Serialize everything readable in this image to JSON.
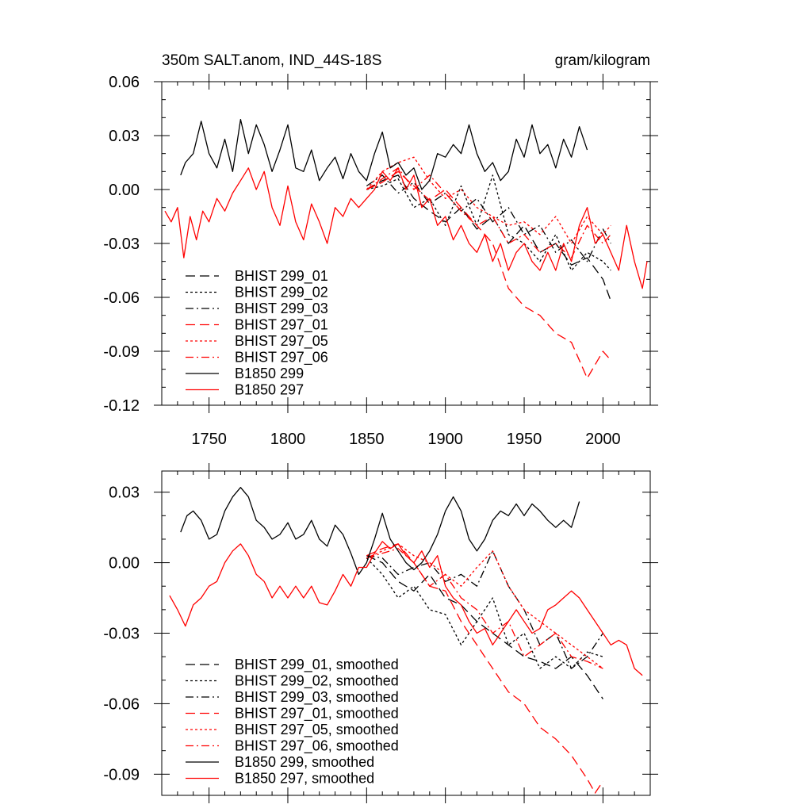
{
  "chart_data": [
    {
      "type": "line",
      "title_left": "350m SALT.anom, IND_44S-18S",
      "title_right": "gram/kilogram",
      "xlabel": "",
      "ylabel": "",
      "xlim": [
        1720,
        2030
      ],
      "ylim": [
        -0.12,
        0.06
      ],
      "x_tick_labels": [
        "1750",
        "1800",
        "1850",
        "1900",
        "1950",
        "2000"
      ],
      "y_tick_labels": [
        "0.06",
        "0.03",
        "0.00",
        "-0.03",
        "-0.06",
        "-0.09",
        "-0.12"
      ],
      "legend_position": "bottom-left",
      "series": [
        {
          "name": "BHIST 299_01",
          "color": "#000000",
          "dash": "dashed",
          "x": [
            1850,
            1860,
            1870,
            1880,
            1890,
            1900,
            1910,
            1920,
            1930,
            1940,
            1950,
            1960,
            1970,
            1980,
            1990,
            2000,
            2005
          ],
          "y": [
            0.0,
            0.005,
            0.008,
            -0.005,
            -0.012,
            -0.018,
            -0.01,
            -0.022,
            -0.015,
            -0.03,
            -0.02,
            -0.035,
            -0.03,
            -0.042,
            -0.038,
            -0.05,
            -0.062
          ]
        },
        {
          "name": "BHIST 299_02",
          "color": "#000000",
          "dash": "dotted",
          "x": [
            1850,
            1860,
            1870,
            1880,
            1890,
            1900,
            1910,
            1920,
            1930,
            1940,
            1950,
            1960,
            1970,
            1980,
            1990,
            2000,
            2005
          ],
          "y": [
            0.0,
            0.002,
            0.006,
            -0.01,
            -0.005,
            -0.02,
            0.002,
            -0.02,
            0.008,
            -0.025,
            -0.03,
            -0.04,
            -0.025,
            -0.045,
            -0.035,
            -0.04,
            -0.045
          ]
        },
        {
          "name": "BHIST 299_03",
          "color": "#000000",
          "dash": "dashdot",
          "x": [
            1850,
            1860,
            1870,
            1880,
            1890,
            1900,
            1910,
            1920,
            1930,
            1940,
            1950,
            1960,
            1970,
            1980,
            1990,
            2000,
            2005
          ],
          "y": [
            0.002,
            0.008,
            -0.002,
            0.004,
            -0.008,
            -0.002,
            -0.012,
            -0.005,
            -0.018,
            -0.01,
            -0.025,
            -0.02,
            -0.035,
            -0.028,
            -0.04,
            -0.022,
            -0.03
          ]
        },
        {
          "name": "BHIST 297_01",
          "color": "#ff0000",
          "dash": "dashed",
          "x": [
            1850,
            1860,
            1870,
            1880,
            1890,
            1900,
            1910,
            1920,
            1930,
            1940,
            1950,
            1960,
            1970,
            1980,
            1985,
            1990,
            2000,
            2005
          ],
          "y": [
            0.0,
            0.004,
            0.01,
            0.002,
            -0.006,
            0.0,
            -0.01,
            -0.02,
            -0.03,
            -0.055,
            -0.065,
            -0.07,
            -0.08,
            -0.085,
            -0.095,
            -0.105,
            -0.09,
            -0.095
          ]
        },
        {
          "name": "BHIST 297_05",
          "color": "#ff0000",
          "dash": "dotted",
          "x": [
            1850,
            1860,
            1870,
            1880,
            1890,
            1900,
            1910,
            1920,
            1930,
            1940,
            1950,
            1960,
            1970,
            1980,
            1990,
            2000,
            2005
          ],
          "y": [
            0.0,
            0.01,
            0.015,
            0.018,
            0.005,
            -0.005,
            0.0,
            -0.01,
            -0.015,
            -0.02,
            -0.018,
            -0.025,
            -0.015,
            -0.03,
            -0.015,
            -0.025,
            -0.02
          ]
        },
        {
          "name": "BHIST 297_06",
          "color": "#ff0000",
          "dash": "dashdot",
          "x": [
            1850,
            1860,
            1870,
            1880,
            1890,
            1900,
            1910,
            1920,
            1930,
            1940,
            1950,
            1960,
            1970,
            1980,
            1990,
            2000,
            2005
          ],
          "y": [
            0.0,
            0.006,
            0.012,
            0.0,
            0.008,
            -0.002,
            -0.012,
            -0.02,
            -0.015,
            -0.03,
            -0.025,
            -0.035,
            -0.03,
            -0.038,
            -0.02,
            -0.03,
            -0.025
          ]
        },
        {
          "name": "B1850 299",
          "color": "#000000",
          "dash": "solid",
          "x": [
            1732,
            1735,
            1740,
            1745,
            1750,
            1755,
            1760,
            1765,
            1770,
            1775,
            1780,
            1785,
            1790,
            1795,
            1800,
            1805,
            1810,
            1815,
            1820,
            1825,
            1830,
            1835,
            1840,
            1845,
            1850,
            1855,
            1860,
            1865,
            1870,
            1875,
            1880,
            1885,
            1890,
            1895,
            1900,
            1905,
            1910,
            1915,
            1920,
            1925,
            1930,
            1935,
            1940,
            1945,
            1950,
            1955,
            1960,
            1965,
            1970,
            1975,
            1980,
            1985,
            1990
          ],
          "y": [
            0.008,
            0.015,
            0.02,
            0.038,
            0.02,
            0.012,
            0.028,
            0.01,
            0.039,
            0.02,
            0.036,
            0.025,
            0.01,
            0.022,
            0.036,
            0.012,
            0.01,
            0.022,
            0.005,
            0.012,
            0.018,
            0.006,
            0.02,
            0.01,
            0.005,
            0.02,
            0.032,
            0.012,
            0.015,
            0.008,
            0.012,
            0.0,
            0.005,
            0.02,
            0.018,
            0.025,
            0.02,
            0.036,
            0.02,
            0.01,
            0.015,
            0.005,
            0.01,
            0.028,
            0.018,
            0.036,
            0.02,
            0.025,
            0.012,
            0.028,
            0.018,
            0.035,
            0.022
          ]
        },
        {
          "name": "B1850 297",
          "color": "#ff0000",
          "dash": "solid",
          "x": [
            1722,
            1726,
            1730,
            1734,
            1738,
            1742,
            1746,
            1750,
            1755,
            1760,
            1765,
            1770,
            1775,
            1780,
            1785,
            1790,
            1795,
            1800,
            1805,
            1810,
            1815,
            1820,
            1825,
            1830,
            1835,
            1840,
            1845,
            1850,
            1855,
            1860,
            1865,
            1870,
            1875,
            1880,
            1885,
            1890,
            1895,
            1900,
            1905,
            1910,
            1915,
            1920,
            1925,
            1930,
            1935,
            1940,
            1945,
            1950,
            1955,
            1960,
            1965,
            1970,
            1975,
            1980,
            1985,
            1990,
            1995,
            2000,
            2005,
            2010,
            2015,
            2020,
            2025,
            2028
          ],
          "y": [
            -0.012,
            -0.018,
            -0.01,
            -0.038,
            -0.015,
            -0.028,
            -0.012,
            -0.018,
            -0.005,
            -0.012,
            -0.002,
            0.005,
            0.012,
            0.0,
            0.01,
            -0.01,
            -0.02,
            0.002,
            -0.018,
            -0.028,
            -0.008,
            -0.018,
            -0.03,
            -0.01,
            -0.015,
            -0.005,
            -0.01,
            -0.005,
            0.0,
            0.01,
            0.005,
            0.012,
            0.0,
            0.008,
            -0.01,
            -0.005,
            -0.02,
            -0.015,
            -0.028,
            -0.02,
            -0.03,
            -0.035,
            -0.025,
            -0.04,
            -0.03,
            -0.045,
            -0.035,
            -0.03,
            -0.04,
            -0.045,
            -0.035,
            -0.045,
            -0.03,
            -0.04,
            -0.02,
            -0.01,
            -0.03,
            -0.025,
            -0.035,
            -0.045,
            -0.02,
            -0.04,
            -0.055,
            -0.04
          ]
        }
      ]
    },
    {
      "type": "line",
      "title_left": "",
      "title_right": "",
      "xlabel": "",
      "ylabel": "",
      "xlim": [
        1720,
        2030
      ],
      "ylim": [
        -0.099,
        0.039
      ],
      "x_tick_labels": [],
      "y_tick_labels": [
        "0.03",
        "0.00",
        "-0.03",
        "-0.06",
        "-0.09"
      ],
      "legend_position": "bottom-left",
      "series": [
        {
          "name": "BHIST 299_01, smoothed",
          "color": "#000000",
          "dash": "dashed",
          "x": [
            1850,
            1860,
            1870,
            1880,
            1890,
            1900,
            1910,
            1920,
            1930,
            1940,
            1950,
            1960,
            1970,
            1980,
            1990,
            2000
          ],
          "y": [
            0.003,
            0.0,
            -0.008,
            -0.012,
            -0.005,
            -0.015,
            -0.018,
            -0.025,
            -0.03,
            -0.035,
            -0.04,
            -0.042,
            -0.045,
            -0.04,
            -0.048,
            -0.058
          ]
        },
        {
          "name": "BHIST 299_02, smoothed",
          "color": "#000000",
          "dash": "dotted",
          "x": [
            1850,
            1860,
            1870,
            1880,
            1890,
            1900,
            1910,
            1920,
            1930,
            1940,
            1950,
            1960,
            1970,
            1980,
            1990,
            2000
          ],
          "y": [
            0.002,
            -0.005,
            -0.015,
            -0.01,
            -0.02,
            -0.022,
            -0.035,
            -0.025,
            -0.015,
            -0.035,
            -0.03,
            -0.045,
            -0.04,
            -0.045,
            -0.038,
            -0.04
          ]
        },
        {
          "name": "BHIST 299_03, smoothed",
          "color": "#000000",
          "dash": "dashdot",
          "x": [
            1850,
            1860,
            1870,
            1880,
            1890,
            1900,
            1910,
            1920,
            1930,
            1940,
            1950,
            1960,
            1970,
            1980,
            1990,
            2000
          ],
          "y": [
            0.003,
            0.002,
            -0.005,
            -0.002,
            0.0,
            -0.008,
            -0.005,
            -0.01,
            0.005,
            -0.01,
            -0.02,
            -0.035,
            -0.03,
            -0.045,
            -0.04,
            -0.03
          ]
        },
        {
          "name": "BHIST 297_01, smoothed",
          "color": "#ff0000",
          "dash": "dashed",
          "x": [
            1850,
            1860,
            1870,
            1880,
            1890,
            1900,
            1910,
            1920,
            1930,
            1940,
            1950,
            1960,
            1970,
            1980,
            1990,
            1995,
            2000
          ],
          "y": [
            0.003,
            0.006,
            0.008,
            0.0,
            -0.01,
            -0.012,
            -0.025,
            -0.035,
            -0.045,
            -0.055,
            -0.06,
            -0.07,
            -0.075,
            -0.082,
            -0.092,
            -0.098,
            -0.093
          ]
        },
        {
          "name": "BHIST 297_05, smoothed",
          "color": "#ff0000",
          "dash": "dotted",
          "x": [
            1850,
            1860,
            1870,
            1880,
            1890,
            1900,
            1910,
            1920,
            1930,
            1940,
            1950,
            1960,
            1970,
            1980,
            1990,
            2000
          ],
          "y": [
            0.002,
            0.005,
            0.008,
            0.003,
            0.0,
            -0.005,
            -0.01,
            -0.002,
            0.005,
            -0.01,
            -0.02,
            -0.025,
            -0.03,
            -0.035,
            -0.04,
            -0.045
          ]
        },
        {
          "name": "BHIST 297_06, smoothed",
          "color": "#ff0000",
          "dash": "dashdot",
          "x": [
            1850,
            1860,
            1870,
            1880,
            1890,
            1900,
            1910,
            1920,
            1930,
            1940,
            1950,
            1960,
            1970,
            1980,
            1990,
            2000
          ],
          "y": [
            0.002,
            0.004,
            0.006,
            0.0,
            -0.01,
            -0.005,
            -0.015,
            -0.02,
            -0.03,
            -0.025,
            -0.04,
            -0.035,
            -0.03,
            -0.04,
            -0.042,
            -0.045
          ]
        },
        {
          "name": "B1850 299, smoothed",
          "color": "#000000",
          "dash": "solid",
          "x": [
            1732,
            1736,
            1740,
            1745,
            1750,
            1755,
            1760,
            1765,
            1770,
            1775,
            1780,
            1785,
            1790,
            1795,
            1800,
            1805,
            1810,
            1815,
            1820,
            1825,
            1830,
            1835,
            1840,
            1845,
            1850,
            1855,
            1860,
            1865,
            1870,
            1875,
            1880,
            1885,
            1890,
            1895,
            1900,
            1905,
            1910,
            1915,
            1920,
            1925,
            1930,
            1935,
            1940,
            1945,
            1950,
            1955,
            1960,
            1965,
            1970,
            1975,
            1980,
            1985
          ],
          "y": [
            0.013,
            0.02,
            0.022,
            0.018,
            0.01,
            0.012,
            0.022,
            0.028,
            0.032,
            0.028,
            0.018,
            0.015,
            0.01,
            0.012,
            0.017,
            0.01,
            0.012,
            0.018,
            0.01,
            0.007,
            0.016,
            0.012,
            0.004,
            -0.005,
            0.0,
            0.01,
            0.021,
            0.01,
            0.005,
            0.0,
            -0.003,
            0.0,
            0.005,
            0.012,
            0.022,
            0.028,
            0.022,
            0.01,
            0.005,
            0.01,
            0.018,
            0.022,
            0.02,
            0.025,
            0.02,
            0.025,
            0.022,
            0.018,
            0.015,
            0.018,
            0.015,
            0.026
          ]
        },
        {
          "name": "B1850 297, smoothed",
          "color": "#ff0000",
          "dash": "solid",
          "x": [
            1725,
            1730,
            1735,
            1740,
            1745,
            1750,
            1755,
            1760,
            1765,
            1770,
            1775,
            1780,
            1785,
            1790,
            1795,
            1800,
            1805,
            1810,
            1815,
            1820,
            1825,
            1830,
            1835,
            1840,
            1845,
            1850,
            1855,
            1860,
            1865,
            1870,
            1875,
            1880,
            1885,
            1890,
            1895,
            1900,
            1905,
            1910,
            1915,
            1920,
            1925,
            1930,
            1935,
            1940,
            1945,
            1950,
            1955,
            1960,
            1965,
            1970,
            1975,
            1980,
            1985,
            1990,
            1995,
            2000,
            2005,
            2010,
            2015,
            2020,
            2025
          ],
          "y": [
            -0.014,
            -0.02,
            -0.027,
            -0.018,
            -0.015,
            -0.01,
            -0.008,
            0.0,
            0.005,
            0.008,
            0.003,
            -0.005,
            -0.008,
            -0.015,
            -0.01,
            -0.015,
            -0.01,
            -0.015,
            -0.01,
            -0.017,
            -0.018,
            -0.012,
            -0.005,
            -0.01,
            -0.002,
            -0.002,
            0.004,
            0.009,
            0.006,
            0.008,
            0.003,
            0.0,
            0.005,
            -0.002,
            0.003,
            -0.01,
            -0.015,
            -0.018,
            -0.025,
            -0.03,
            -0.028,
            -0.035,
            -0.03,
            -0.025,
            -0.02,
            -0.025,
            -0.03,
            -0.028,
            -0.02,
            -0.018,
            -0.015,
            -0.012,
            -0.015,
            -0.02,
            -0.025,
            -0.03,
            -0.035,
            -0.033,
            -0.035,
            -0.045,
            -0.048
          ]
        }
      ]
    }
  ]
}
